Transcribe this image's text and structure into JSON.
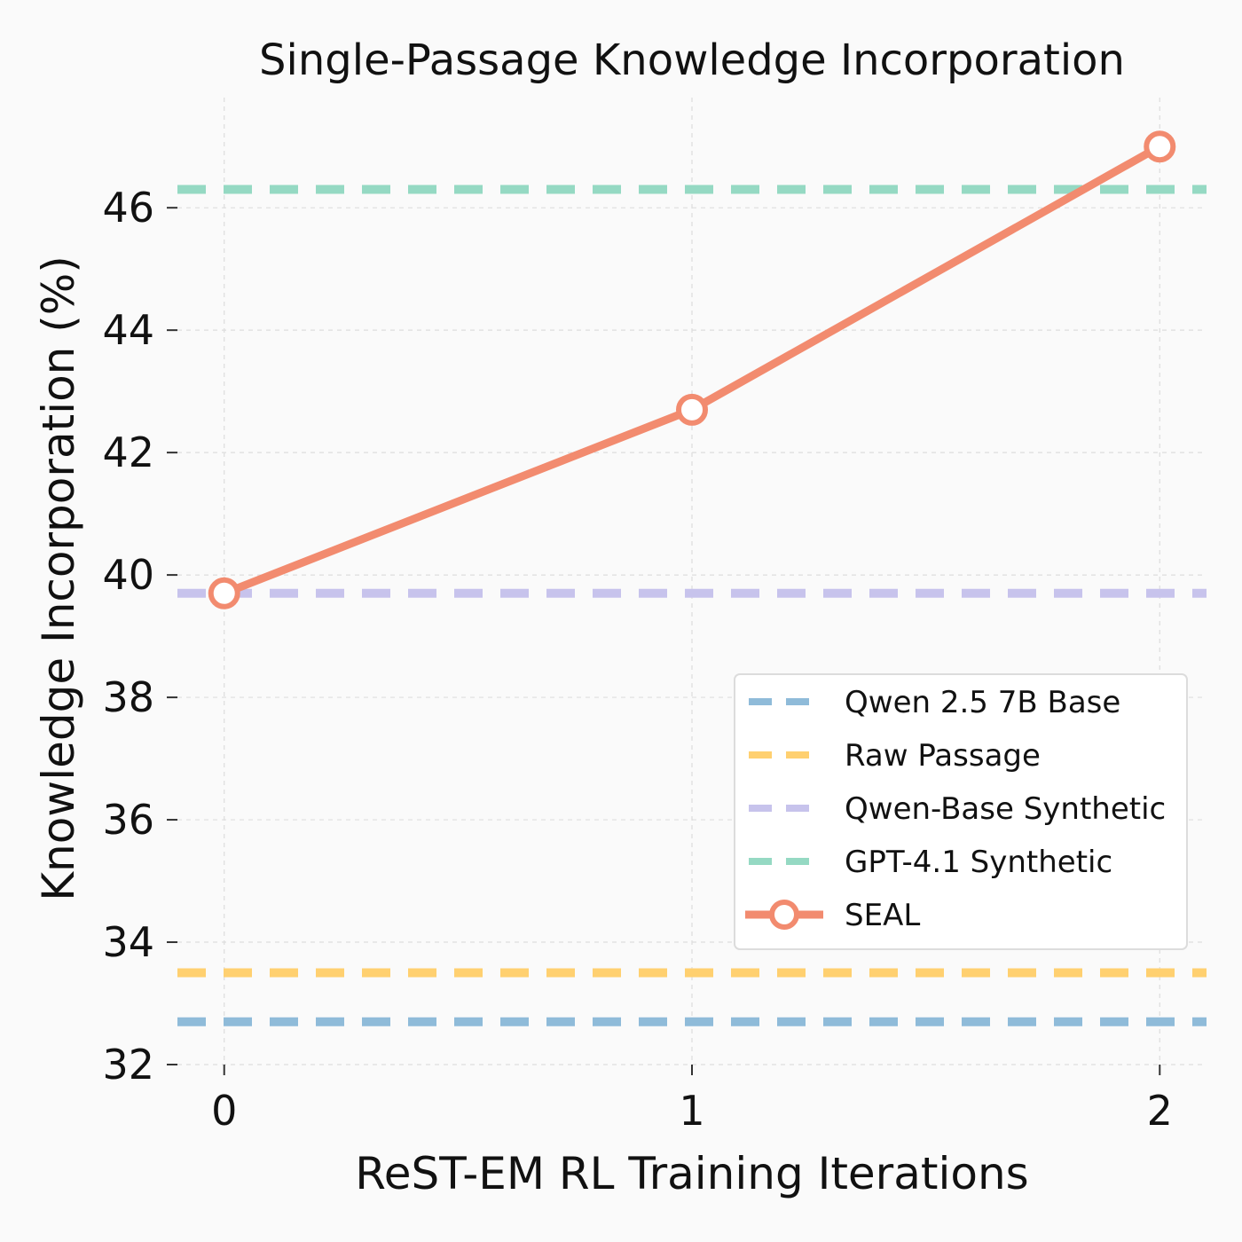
{
  "chart_data": {
    "type": "line",
    "title": "Single-Passage Knowledge Incorporation",
    "xlabel": "ReST-EM RL Training Iterations",
    "ylabel": "Knowledge Incorporation (%)",
    "x": [
      0,
      1,
      2
    ],
    "xticks": [
      "0",
      "1",
      "2"
    ],
    "xlim": [
      -0.1,
      2.1
    ],
    "ylim": [
      32,
      47.8
    ],
    "yticks": [
      "32",
      "34",
      "36",
      "38",
      "40",
      "42",
      "44",
      "46"
    ],
    "grid": true,
    "legend_position": "lower-right",
    "series": [
      {
        "name": "SEAL",
        "kind": "line-marker",
        "color": "#f28b6f",
        "values": [
          39.7,
          42.7,
          47.0
        ]
      }
    ],
    "baselines": [
      {
        "name": "Qwen 2.5 7B Base",
        "value": 32.7,
        "color": "#8fbbd9"
      },
      {
        "name": "Raw Passage",
        "value": 33.5,
        "color": "#ffd070"
      },
      {
        "name": "Qwen-Base Synthetic",
        "value": 39.7,
        "color": "#c7c3ec"
      },
      {
        "name": "GPT-4.1 Synthetic",
        "value": 46.3,
        "color": "#95d9c3"
      }
    ]
  }
}
